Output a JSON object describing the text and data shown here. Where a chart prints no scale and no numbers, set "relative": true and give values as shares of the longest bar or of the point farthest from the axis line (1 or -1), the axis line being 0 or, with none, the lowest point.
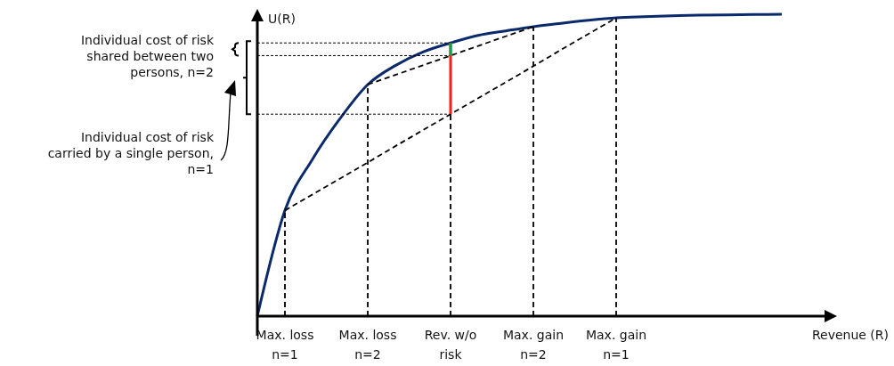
{
  "chart_data": {
    "type": "line",
    "relative": true,
    "xlabel": "Revenue (R)",
    "ylabel": "U(R)",
    "categories": [
      null,
      "Max. loss\nn=1",
      null,
      null,
      "Max. loss\nn=2",
      null,
      null,
      "Rev. w/o\nrisk",
      null,
      null,
      "Max. gain\nn=2",
      null,
      null,
      "Max. gain\nn=1",
      null,
      null,
      null,
      null,
      null,
      null
    ],
    "marker": "none",
    "annotations": [
      "Individual cost of risk\nshared between two\npersons, n=2",
      "Individual cost of risk\ncarried by a single person,\nn=1"
    ],
    "series": [
      {
        "color": "#0b2a6b",
        "line_style": "solid",
        "values": [
          0,
          0.35,
          0.52,
          0.655,
          0.767,
          0.83,
          0.875,
          0.905,
          0.93,
          0.945,
          0.959,
          0.97,
          0.98,
          0.988,
          0.992,
          0.995,
          0.997,
          0.998,
          0.999,
          1.0
        ]
      },
      {
        "color": "#000000",
        "line_style": "dashed",
        "values": [
          null,
          0.35,
          0.403,
          0.456,
          0.509,
          0.563,
          0.616,
          0.669,
          0.722,
          0.775,
          0.828,
          0.882,
          0.935,
          0.988,
          null,
          null,
          null,
          null,
          null,
          null
        ]
      },
      {
        "color": "#000000",
        "line_style": "dashed",
        "values": [
          null,
          null,
          null,
          null,
          0.767,
          0.799,
          0.831,
          0.863,
          0.895,
          0.927,
          0.959,
          null,
          null,
          null,
          null,
          null,
          null,
          null,
          null,
          null
        ]
      },
      {
        "color": "#000000",
        "line_style": "dashed",
        "x": [
          "Max. loss\nn=1",
          "Max. loss\nn=1"
        ],
        "values": [
          0,
          0.35
        ]
      },
      {
        "color": "#000000",
        "line_style": "dashed",
        "x": [
          "Max. loss\nn=2",
          "Max. loss\nn=2"
        ],
        "values": [
          0,
          0.767
        ]
      },
      {
        "color": "#000000",
        "line_style": "dashed",
        "x": [
          "Rev. w/o\nrisk",
          "Rev. w/o\nrisk"
        ],
        "values": [
          0,
          0.669
        ]
      },
      {
        "color": "#000000",
        "line_style": "dashed",
        "x": [
          "Max. gain\nn=2",
          "Max. gain\nn=2"
        ],
        "values": [
          0,
          0.959
        ]
      },
      {
        "color": "#000000",
        "line_style": "dashed",
        "x": [
          "Max. gain\nn=1",
          "Max. gain\nn=1"
        ],
        "values": [
          0,
          0.988
        ]
      },
      {
        "color": "#000000",
        "line_style": "dotted",
        "values": [
          0.905,
          0.905,
          0.905,
          0.905,
          0.905,
          0.905,
          0.905,
          0.905,
          null,
          null,
          null,
          null,
          null,
          null,
          null,
          null,
          null,
          null,
          null,
          null
        ]
      },
      {
        "color": "#000000",
        "line_style": "dotted",
        "values": [
          0.863,
          0.863,
          0.863,
          0.863,
          0.863,
          0.863,
          0.863,
          0.863,
          null,
          null,
          null,
          null,
          null,
          null,
          null,
          null,
          null,
          null,
          null,
          null
        ]
      },
      {
        "color": "#000000",
        "line_style": "dotted",
        "values": [
          0.669,
          0.669,
          0.669,
          0.669,
          0.669,
          0.669,
          0.669,
          0.669,
          null,
          null,
          null,
          null,
          null,
          null,
          null,
          null,
          null,
          null,
          null,
          null
        ]
      },
      {
        "color": "#ff1a1a",
        "line_style": "solid",
        "x": [
          "Rev. w/o\nrisk",
          "Rev. w/o\nrisk"
        ],
        "values": [
          0.669,
          0.905
        ]
      },
      {
        "color": "#00a651",
        "line_style": "solid",
        "x": [
          "Rev. w/o\nrisk",
          "Rev. w/o\nrisk"
        ],
        "values": [
          0.863,
          0.905
        ]
      }
    ]
  }
}
